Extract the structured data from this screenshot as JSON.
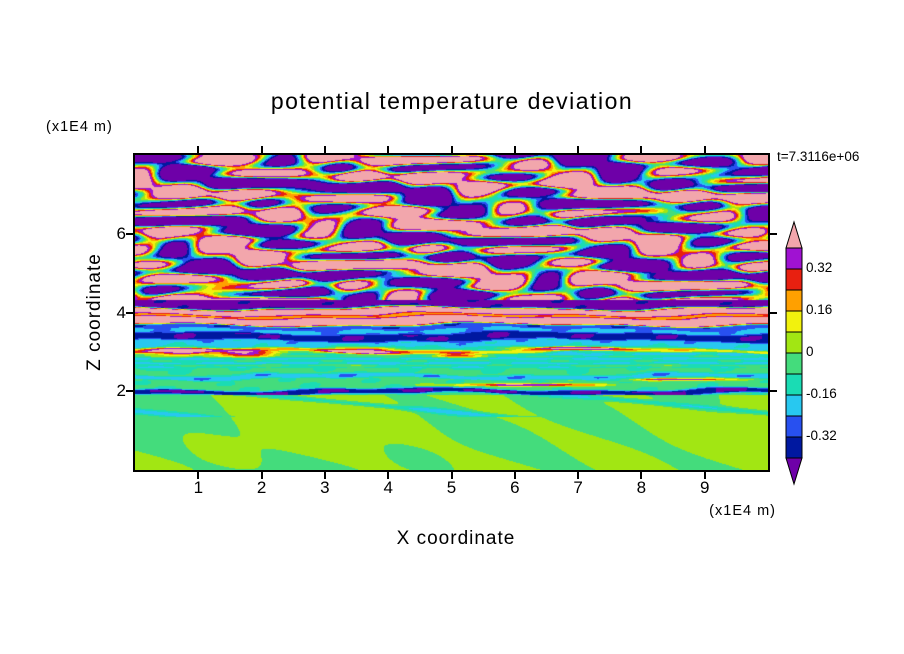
{
  "chart_data": {
    "type": "heatmap",
    "title": "potential temperature deviation",
    "timestamp": "t=7.3116e+06",
    "xlabel": "X coordinate",
    "ylabel": "Z coordinate",
    "x_unit": "(x1E4 m)",
    "z_unit": "(x1E4 m)",
    "x_range": [
      0,
      10
    ],
    "z_range": [
      0,
      8
    ],
    "x_ticks": [
      1,
      2,
      3,
      4,
      5,
      6,
      7,
      8,
      9
    ],
    "z_ticks": [
      2,
      4,
      6
    ],
    "grid": false,
    "legend_position": "right-colorbar",
    "levels": [
      -0.4,
      -0.32,
      -0.24,
      -0.16,
      -0.08,
      0,
      0.08,
      0.16,
      0.24,
      0.32,
      0.4
    ],
    "colors": [
      "#6E00A8",
      "#0018A0",
      "#2850F0",
      "#28C8F0",
      "#1ADCB4",
      "#44DC7C",
      "#A2E613",
      "#F2F20D",
      "#FFA000",
      "#E82010",
      "#A012D2",
      "#F2A6AC"
    ],
    "colorbar_labels": [
      "0.32",
      "0.16",
      "0",
      "-0.16",
      "-0.32"
    ],
    "field": {
      "wave_zone": {
        "z_min": 4.32,
        "amp": 0.6,
        "sharpen": 2.8,
        "terms": [
          [
            1.9,
            8.5,
            0.9,
            1.5,
            2.0,
            0.9,
            -2.7,
            1.3
          ],
          [
            3.7,
            -11.0,
            2.0,
            1.0,
            1.5,
            1.7,
            4.1,
            0.6
          ],
          [
            0.8,
            5.2,
            2.6,
            0.8,
            0,
            0,
            0,
            0
          ]
        ]
      },
      "blob_zone": {
        "z_max": 1.9,
        "amp": 0.075,
        "sharpen": 2.2,
        "terms": [
          [
            1.8,
            2.6,
            0.0,
            1.0,
            1.8,
            0.7,
            1.1,
            0.5
          ],
          [
            0.9,
            -1.7,
            1.1,
            0.8,
            0,
            0,
            0,
            0
          ],
          [
            3.1,
            3.9,
            2.2,
            0.6,
            0,
            0,
            0,
            0
          ]
        ],
        "wisp": {
          "amp": -0.16,
          "fx": 1.3,
          "fz": 9,
          "ph": 0.7,
          "pow": 6,
          "z_min": 1.35
        }
      },
      "profile": [
        [
          1.9,
          -0.06
        ],
        [
          1.955,
          -0.4
        ],
        [
          2.02,
          -0.4
        ],
        [
          2.08,
          -0.06
        ],
        [
          2.3,
          -0.05
        ],
        [
          2.34,
          -0.21
        ],
        [
          2.4,
          -0.21
        ],
        [
          2.46,
          -0.05
        ],
        [
          2.58,
          -0.07
        ],
        [
          2.68,
          -0.14
        ],
        [
          2.96,
          -0.14
        ],
        [
          3.0,
          0.1
        ],
        [
          3.045,
          0.1
        ],
        [
          3.09,
          -0.2
        ],
        [
          3.26,
          -0.2
        ],
        [
          3.32,
          -0.38
        ],
        [
          3.44,
          -0.38
        ],
        [
          3.5,
          -0.21
        ],
        [
          3.56,
          -0.21
        ],
        [
          3.6,
          -0.29
        ],
        [
          3.66,
          -0.29
        ],
        [
          3.71,
          0.45
        ],
        [
          3.86,
          0.45
        ],
        [
          3.895,
          0.21
        ],
        [
          3.93,
          0.21
        ],
        [
          3.97,
          0.46
        ],
        [
          4.08,
          0.46
        ],
        [
          4.14,
          -0.44
        ],
        [
          4.32,
          -0.44
        ]
      ],
      "wiggle": [
        [
          1.1,
          3.0,
          0.0,
          0.045
        ],
        [
          2.9,
          7.0,
          1.0,
          0.025
        ]
      ],
      "stripe_mod": {
        "z_from": 2.58,
        "z_to": 2.97,
        "amp": 0.05,
        "fz": 55,
        "fx": 2.0,
        "xamp": 0.3
      },
      "texture": [
        [
          5.0,
          13.0,
          0.5,
          0.03
        ],
        [
          9.0,
          -21.0,
          0.0,
          0.02
        ]
      ],
      "bumps": [
        [
          0.7,
          3.0,
          0.55,
          0.1,
          0.62
        ],
        [
          1.8,
          2.96,
          0.45,
          0.09,
          0.6
        ],
        [
          3.6,
          3.03,
          0.7,
          0.09,
          0.58
        ],
        [
          5.1,
          2.92,
          0.4,
          0.07,
          0.42
        ],
        [
          7.0,
          3.09,
          1.4,
          0.05,
          0.35
        ],
        [
          6.2,
          2.16,
          1.1,
          0.035,
          0.5
        ],
        [
          8.6,
          2.3,
          0.8,
          0.03,
          0.45
        ]
      ]
    }
  }
}
